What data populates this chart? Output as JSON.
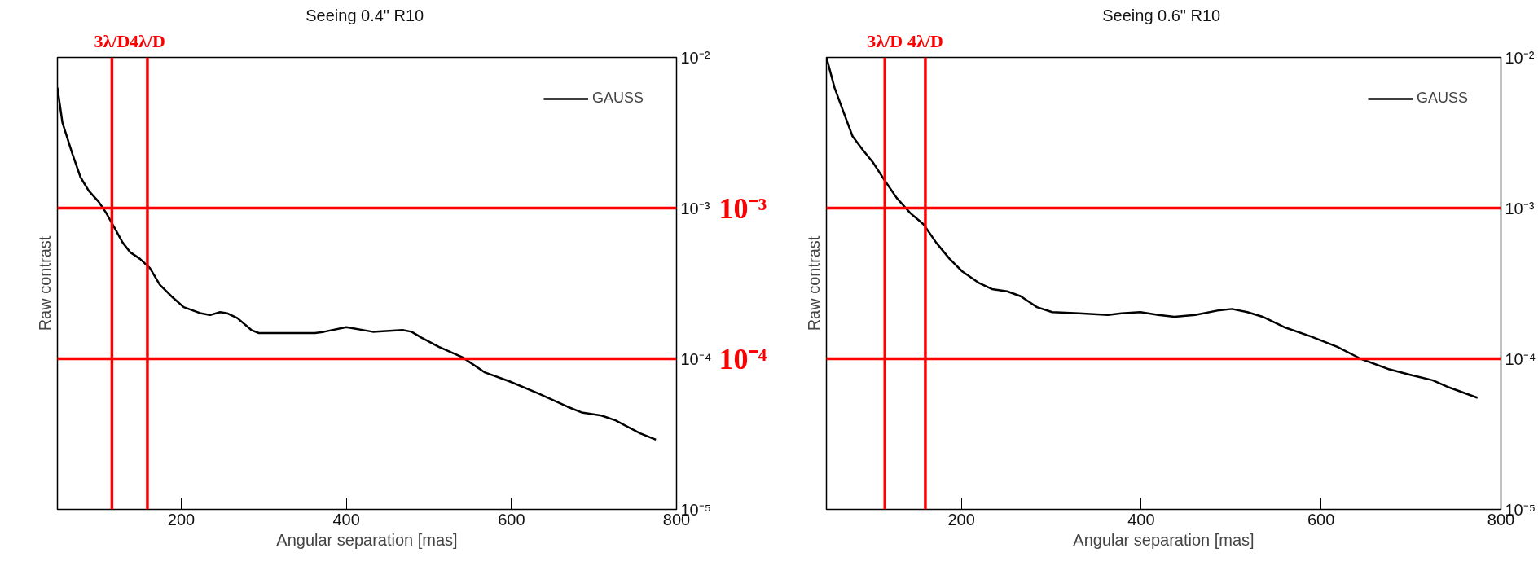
{
  "chart_data": [
    {
      "type": "line",
      "title": "Seeing 0.4\"  R10",
      "xlabel": "Angular separation [mas]",
      "ylabel": "Raw contrast",
      "log": "y",
      "grid": false,
      "legend": "top right",
      "marker": "none",
      "line_style": "solid",
      "xlim": [
        50,
        800
      ],
      "xticks": [
        200,
        400,
        600,
        800
      ],
      "ylim": [
        1e-05,
        0.01
      ],
      "yticks": [
        {
          "value": 0.01,
          "label": "10⁻²"
        },
        {
          "value": 0.001,
          "label": "10⁻³"
        },
        {
          "value": 0.0001,
          "label": "10⁻⁴"
        },
        {
          "value": 1e-05,
          "label": "10⁻⁵"
        }
      ],
      "series": [
        {
          "name": "GAUSS",
          "color": "#000000",
          "x": [
            50,
            56,
            68,
            78,
            88,
            100,
            109,
            118,
            129,
            138,
            150,
            162,
            174,
            188,
            203,
            224,
            235,
            247,
            256,
            268,
            285,
            294,
            332,
            362,
            373,
            400,
            432,
            468,
            479,
            491,
            512,
            541,
            568,
            597,
            632,
            668,
            685,
            709,
            726,
            756,
            775
          ],
          "values": [
            0.0063,
            0.0037,
            0.0023,
            0.0016,
            0.0013,
            0.0011,
            0.00093,
            0.00076,
            0.00059,
            0.00051,
            0.00046,
            0.0004,
            0.00031,
            0.00026,
            0.00022,
            0.0002,
            0.000195,
            0.000204,
            0.0002,
            0.000186,
            0.000155,
            0.000148,
            0.000148,
            0.000148,
            0.000151,
            0.000162,
            0.000151,
            0.000155,
            0.000151,
            0.000138,
            0.00012,
            0.000102,
            8.1e-05,
            7.1e-05,
            5.9e-05,
            4.8e-05,
            4.4e-05,
            4.2e-05,
            3.9e-05,
            3.2e-05,
            2.9e-05
          ]
        }
      ],
      "ref_lines": [
        {
          "axis": "x",
          "value": 116,
          "label": "3λ/D",
          "color": "#ff0000"
        },
        {
          "axis": "x",
          "value": 159,
          "label": "4λ/D",
          "color": "#ff0000"
        },
        {
          "axis": "y",
          "value": 0.001,
          "label": "10⁻³",
          "color": "#ff0000"
        },
        {
          "axis": "y",
          "value": 0.0001,
          "label": "10⁻⁴",
          "color": "#ff0000"
        }
      ]
    },
    {
      "type": "line",
      "title": "Seeing 0.6\"  R10",
      "xlabel": "Angular separation [mas]",
      "ylabel": "Raw contrast",
      "log": "y",
      "grid": false,
      "legend": "top right",
      "marker": "none",
      "line_style": "solid",
      "xlim": [
        50,
        800
      ],
      "xticks": [
        200,
        400,
        600,
        800
      ],
      "ylim": [
        1e-05,
        0.01
      ],
      "yticks": [
        {
          "value": 0.01,
          "label": "10⁻²"
        },
        {
          "value": 0.001,
          "label": "10⁻³"
        },
        {
          "value": 0.0001,
          "label": "10⁻⁴"
        },
        {
          "value": 1e-05,
          "label": "10⁻⁵"
        }
      ],
      "series": [
        {
          "name": "GAUSS",
          "color": "#000000",
          "x": [
            50,
            59,
            68,
            79,
            90,
            102,
            114,
            128,
            143,
            158,
            172,
            187,
            201,
            219,
            234,
            251,
            266,
            284,
            301,
            331,
            363,
            378,
            399,
            419,
            437,
            460,
            487,
            501,
            518,
            535,
            559,
            588,
            618,
            644,
            676,
            700,
            724,
            741,
            774
          ],
          "values": [
            0.01,
            0.0063,
            0.0045,
            0.003,
            0.00245,
            0.002,
            0.00155,
            0.00117,
            0.00093,
            0.00078,
            0.00059,
            0.00046,
            0.00038,
            0.00032,
            0.00029,
            0.00028,
            0.00026,
            0.00022,
            0.000204,
            0.0002,
            0.000195,
            0.0002,
            0.000204,
            0.000195,
            0.00019,
            0.000195,
            0.00021,
            0.000214,
            0.000204,
            0.00019,
            0.000162,
            0.000141,
            0.00012,
            0.0001,
            8.5e-05,
            7.8e-05,
            7.2e-05,
            6.5e-05,
            5.5e-05
          ]
        }
      ],
      "ref_lines": [
        {
          "axis": "x",
          "value": 115,
          "label": "3λ/D",
          "color": "#ff0000"
        },
        {
          "axis": "x",
          "value": 160,
          "label": "4λ/D",
          "color": "#ff0000"
        },
        {
          "axis": "y",
          "value": 0.001,
          "color": "#ff0000"
        },
        {
          "axis": "y",
          "value": 0.0001,
          "color": "#ff0000"
        }
      ]
    }
  ]
}
